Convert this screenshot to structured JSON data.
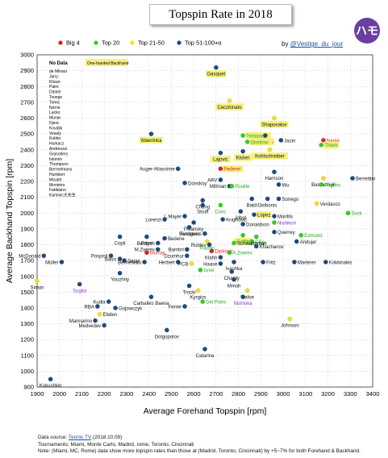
{
  "header": {
    "title": "Topspin Rate in 2018",
    "logo_text": "ハモ",
    "by_prefix": "by ",
    "by_handle": "@Vestige_du_jour"
  },
  "footer": {
    "line1_prefix": "Data source: ",
    "line1_source": "Tennis TV",
    "line1_suffix": " (2018.10.09)",
    "line2": "Tournaments: Miami, Monte Carlo, Madrid, rome, Toronto, Cincinnati",
    "line3": "Note: (Miami, MC, Rome) data show more topspin rates than those at (Madrid, Toronto, Cincinnati) by +5~7% for both Forehand & Backhand."
  },
  "chart_data": {
    "type": "scatter",
    "xlabel": "Average Forehand Topspin [rpm]",
    "ylabel": "Average Backhand Topspin [rpm]",
    "xlim": [
      1900,
      3400
    ],
    "ylim": [
      900,
      3000
    ],
    "xticks": [
      1900,
      2000,
      2100,
      2200,
      2300,
      2400,
      2500,
      2600,
      2700,
      2800,
      2900,
      3000,
      3100,
      3200,
      3300,
      3400
    ],
    "yticks": [
      900,
      1000,
      1100,
      1200,
      1300,
      1400,
      1500,
      1600,
      1700,
      1800,
      1900,
      2000,
      2100,
      2200,
      2300,
      2400,
      2500,
      2600,
      2700,
      2800,
      2900,
      3000
    ],
    "grid": true,
    "legend": {
      "position": "top-left",
      "entries": [
        {
          "name": "Big 4",
          "color": "#e02020"
        },
        {
          "name": "Top 20",
          "color": "#33cc22"
        },
        {
          "name": "Top 21-50",
          "color": "#f0e020"
        },
        {
          "name": "Top 51-100+α",
          "color": "#1f4a7a"
        }
      ]
    },
    "one_handed_note": "One-handed Backhand",
    "no_data_title": "No Data",
    "no_data": [
      "de Minaur",
      "Jarry",
      "Klizan",
      "Paire",
      "Daniel",
      "Tsonge",
      "Tomic",
      "Norrie",
      "Lacko",
      "Munar",
      "Djere",
      "Kovalik",
      "Vesely",
      "Kubler",
      "Hurkacz",
      "Andreozzi",
      "Granollers",
      "Istomin",
      "Thompson",
      "Berrnelmans",
      "Humbert",
      "Moutet",
      "Monteiro",
      "Fabbiano",
      "Karlovic大先生"
    ],
    "colors": {
      "big4": "#e02020",
      "top20": "#33cc22",
      "top21_50": "#f0e020",
      "top51": "#1f4a7a",
      "label_red": "#e02020",
      "label_green": "#22aa22",
      "label_purple": "#8833cc",
      "highlight": "#f5f07a"
    },
    "points": [
      {
        "name": "Gasquet",
        "x": 2700,
        "y": 2920,
        "cat": "top51",
        "one": true
      },
      {
        "name": "Cecchinato",
        "x": 2760,
        "y": 2710,
        "cat": "top21_50",
        "one": true
      },
      {
        "name": "Shapovalov",
        "x": 2960,
        "y": 2600,
        "cat": "top21_50",
        "one": true
      },
      {
        "name": "Tsitsipas",
        "x": 2820,
        "y": 2490,
        "cat": "top20",
        "one": true,
        "lc": "green"
      },
      {
        "name": "Cuevas",
        "x": 2920,
        "y": 2490,
        "cat": "top51",
        "one": true
      },
      {
        "name": "Dimitrov",
        "x": 2840,
        "y": 2450,
        "cat": "top20",
        "one": true,
        "lc": "green"
      },
      {
        "name": "Jazin",
        "x": 2990,
        "y": 2460,
        "cat": "top51"
      },
      {
        "name": "Nadal",
        "x": 3180,
        "y": 2460,
        "cat": "big4",
        "lc": "red"
      },
      {
        "name": "Thiem",
        "x": 3170,
        "y": 2430,
        "cat": "top20",
        "one": true,
        "lc": "green"
      },
      {
        "name": "Wawrinka",
        "x": 2410,
        "y": 2500,
        "cat": "top51",
        "one": true
      },
      {
        "name": "Kicker",
        "x": 2820,
        "y": 2390,
        "cat": "top51",
        "one": true
      },
      {
        "name": "Kohlschreiber",
        "x": 2940,
        "y": 2400,
        "cat": "top21_50",
        "one": true
      },
      {
        "name": "Lajovic",
        "x": 2720,
        "y": 2380,
        "cat": "top51",
        "one": true
      },
      {
        "name": "Federer",
        "x": 2720,
        "y": 2280,
        "cat": "big4",
        "one": true,
        "lc": "red"
      },
      {
        "name": "Auger-Aliassime",
        "x": 2530,
        "y": 2280,
        "cat": "top51"
      },
      {
        "name": "Harrison",
        "x": 2960,
        "y": 2260,
        "cat": "top51"
      },
      {
        "name": "Basilashvili",
        "x": 3180,
        "y": 2220,
        "cat": "top21_50"
      },
      {
        "name": "Fognini",
        "x": 3170,
        "y": 2180,
        "cat": "top20",
        "lc": "green"
      },
      {
        "name": "Berrettini",
        "x": 3310,
        "y": 2220,
        "cat": "top51"
      },
      {
        "name": "ARV",
        "x": 2720,
        "y": 2210,
        "cat": "top51"
      },
      {
        "name": "Millman",
        "x": 2760,
        "y": 2170,
        "cat": "top51"
      },
      {
        "name": "Pouille",
        "x": 2770,
        "y": 2170,
        "cat": "top20",
        "lc": "green"
      },
      {
        "name": "Donskoy",
        "x": 2560,
        "y": 2190,
        "cat": "top51"
      },
      {
        "name": "Wu",
        "x": 2980,
        "y": 2180,
        "cat": "top51"
      },
      {
        "name": "Chung",
        "x": 2640,
        "y": 2080,
        "cat": "top51"
      },
      {
        "name": "Struff",
        "x": 2640,
        "y": 2050,
        "cat": "top51"
      },
      {
        "name": "Coric",
        "x": 2720,
        "y": 2050,
        "cat": "top20",
        "lc": "green"
      },
      {
        "name": "Baldi",
        "x": 2860,
        "y": 2090,
        "cat": "top51"
      },
      {
        "name": "Delbonis",
        "x": 2930,
        "y": 2090,
        "cat": "top51"
      },
      {
        "name": "Sonego",
        "x": 2980,
        "y": 2090,
        "cat": "top51"
      },
      {
        "name": "Verdasco",
        "x": 3150,
        "y": 2060,
        "cat": "top21_50"
      },
      {
        "name": "Albot",
        "x": 2810,
        "y": 2010,
        "cat": "top51"
      },
      {
        "name": "Lopez",
        "x": 2870,
        "y": 1990,
        "cat": "top51",
        "one": true
      },
      {
        "name": "Monfils",
        "x": 2960,
        "y": 1980,
        "cat": "top51"
      },
      {
        "name": "L.Mayer",
        "x": 2560,
        "y": 1980,
        "cat": "top51"
      },
      {
        "name": "Krajinovic",
        "x": 2730,
        "y": 1960,
        "cat": "top51"
      },
      {
        "name": "Donaldson",
        "x": 2820,
        "y": 1930,
        "cat": "top51"
      },
      {
        "name": "Sock",
        "x": 3290,
        "y": 2000,
        "cat": "top20",
        "lc": "green"
      },
      {
        "name": "Lorenzi",
        "x": 2470,
        "y": 1960,
        "cat": "top51"
      },
      {
        "name": "Polansky",
        "x": 2600,
        "y": 1940,
        "cat": "top51"
      },
      {
        "name": "Nishikori",
        "x": 2960,
        "y": 1940,
        "cat": "top20",
        "lc": "purple"
      },
      {
        "name": "Sandgren",
        "x": 2580,
        "y": 1910,
        "cat": "top51"
      },
      {
        "name": "Fucsovics",
        "x": 2650,
        "y": 1870,
        "cat": "top51"
      },
      {
        "name": "Querrey",
        "x": 2960,
        "y": 1880,
        "cat": "top51"
      },
      {
        "name": "Edmund",
        "x": 3080,
        "y": 1860,
        "cat": "top20",
        "lc": "green"
      },
      {
        "name": "Goffin",
        "x": 2820,
        "y": 1860,
        "cat": "top20",
        "one": true,
        "lc": "green"
      },
      {
        "name": "Anderson",
        "x": 2880,
        "y": 1850,
        "cat": "top20",
        "lc": "green"
      },
      {
        "name": "Copil",
        "x": 2270,
        "y": 1850,
        "cat": "top51"
      },
      {
        "name": "Paire",
        "x": 2390,
        "y": 1850,
        "cat": "top51"
      },
      {
        "name": "Bedene",
        "x": 2470,
        "y": 1840,
        "cat": "top51"
      },
      {
        "name": "Raonic",
        "x": 2660,
        "y": 1820,
        "cat": "top21_50",
        "lc": "green"
      },
      {
        "name": "Cilic",
        "x": 2860,
        "y": 1820,
        "cat": "top20",
        "lc": "green"
      },
      {
        "name": "Schwartzman",
        "x": 2780,
        "y": 1810,
        "cat": "top20"
      },
      {
        "name": "Andujar",
        "x": 3060,
        "y": 1820,
        "cat": "top51"
      },
      {
        "name": "Berdych",
        "x": 2440,
        "y": 1810,
        "cat": "top51"
      },
      {
        "name": "Rublev",
        "x": 2670,
        "y": 1800,
        "cat": "top51"
      },
      {
        "name": "Khachanov",
        "x": 2880,
        "y": 1790,
        "cat": "top51"
      },
      {
        "name": "M.Zverev",
        "x": 2440,
        "y": 1770,
        "cat": "top51"
      },
      {
        "name": "Bambri",
        "x": 2570,
        "y": 1770,
        "cat": "top51"
      },
      {
        "name": "Djokovic",
        "x": 2680,
        "y": 1760,
        "cat": "big4",
        "lc": "red"
      },
      {
        "name": "A.Zverev",
        "x": 2760,
        "y": 1750,
        "cat": "top20",
        "lc": "green"
      },
      {
        "name": "Murray",
        "x": 2390,
        "y": 1750,
        "cat": "big4",
        "lc": "red"
      },
      {
        "name": "Dzumhur",
        "x": 2570,
        "y": 1730,
        "cat": "top51"
      },
      {
        "name": "Klahn",
        "x": 2720,
        "y": 1720,
        "cat": "top51"
      },
      {
        "name": "Pospisil",
        "x": 2230,
        "y": 1730,
        "cat": "top51"
      },
      {
        "name": "Basic",
        "x": 2270,
        "y": 1710,
        "cat": "top51"
      },
      {
        "name": "Seppi",
        "x": 2290,
        "y": 1700,
        "cat": "top51"
      },
      {
        "name": "McDonald",
        "x": 1930,
        "y": 1730,
        "cat": "top51"
      },
      {
        "name": "Müller",
        "x": 2010,
        "y": 1690,
        "cat": "top51"
      },
      {
        "name": "Benneteau",
        "x": 2380,
        "y": 1690,
        "cat": "top51"
      },
      {
        "name": "Herbert",
        "x": 2530,
        "y": 1690,
        "cat": "top51"
      },
      {
        "name": "Ivashka",
        "x": 2780,
        "y": 1690,
        "cat": "top51"
      },
      {
        "name": "Fritz",
        "x": 2910,
        "y": 1690,
        "cat": "top51"
      },
      {
        "name": "Marterer",
        "x": 3050,
        "y": 1690,
        "cat": "top51"
      },
      {
        "name": "Kokkinakis",
        "x": 3190,
        "y": 1690,
        "cat": "top51"
      },
      {
        "name": "PCB",
        "x": 2590,
        "y": 1680,
        "cat": "top21_50"
      },
      {
        "name": "Haase",
        "x": 2720,
        "y": 1680,
        "cat": "top51"
      },
      {
        "name": "Isner",
        "x": 2630,
        "y": 1640,
        "cat": "top20",
        "lc": "green"
      },
      {
        "name": "Youzhny",
        "x": 2270,
        "y": 1620,
        "cat": "top51"
      },
      {
        "name": "Chardy",
        "x": 2770,
        "y": 1630,
        "cat": "top51"
      },
      {
        "name": "Simon",
        "x": 1900,
        "y": 1570,
        "cat": "top21_50"
      },
      {
        "name": "Mmoh",
        "x": 2780,
        "y": 1580,
        "cat": "top51"
      },
      {
        "name": "Sugita",
        "x": 2090,
        "y": 1550,
        "cat": "top51",
        "lc": "purple"
      },
      {
        "name": "Trocki",
        "x": 2580,
        "y": 1540,
        "cat": "top51"
      },
      {
        "name": "Kyrgios",
        "x": 2620,
        "y": 1510,
        "cat": "top21_50"
      },
      {
        "name": "Tiafoe",
        "x": 2840,
        "y": 1510,
        "cat": "top21_50"
      },
      {
        "name": "Carballes Baena",
        "x": 2410,
        "y": 1470,
        "cat": "top51"
      },
      {
        "name": "Nishioka",
        "x": 2820,
        "y": 1470,
        "cat": "top51",
        "lc": "purple"
      },
      {
        "name": "Kudla",
        "x": 2220,
        "y": 1440,
        "cat": "top51"
      },
      {
        "name": "Del Potro",
        "x": 2640,
        "y": 1440,
        "cat": "top20",
        "lc": "green"
      },
      {
        "name": "Ferrer",
        "x": 2560,
        "y": 1410,
        "cat": "top51"
      },
      {
        "name": "RBA",
        "x": 2170,
        "y": 1410,
        "cat": "top51"
      },
      {
        "name": "Gojowczyk",
        "x": 2250,
        "y": 1400,
        "cat": "top51"
      },
      {
        "name": "Ebden",
        "x": 2180,
        "y": 1360,
        "cat": "top21_50"
      },
      {
        "name": "Mannarino",
        "x": 2160,
        "y": 1320,
        "cat": "top51"
      },
      {
        "name": "Johnson",
        "x": 3030,
        "y": 1330,
        "cat": "top21_50"
      },
      {
        "name": "Medvedev",
        "x": 2200,
        "y": 1290,
        "cat": "top51"
      },
      {
        "name": "Dolgopolov",
        "x": 2480,
        "y": 1260,
        "cat": "top51"
      },
      {
        "name": "Catarina",
        "x": 2650,
        "y": 1140,
        "cat": "top51"
      },
      {
        "name": "Kukushkin",
        "x": 1960,
        "y": 950,
        "cat": "top51"
      }
    ]
  }
}
